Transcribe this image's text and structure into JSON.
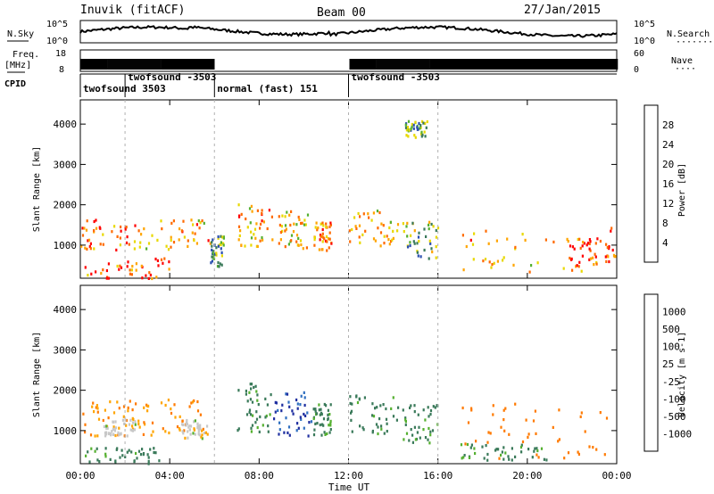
{
  "header": {
    "title_left": "Inuvik (fitACF)",
    "title_center": "Beam 00",
    "title_right": "27/Jan/2015"
  },
  "noise_panel": {
    "left_label": "N.Sky",
    "right_label": "N.Search",
    "left_ticks": [
      "10^5",
      "10^0"
    ],
    "right_ticks": [
      "10^5",
      "10^0"
    ],
    "legend_dots": "·······"
  },
  "freq_panel": {
    "left_label_1": "Freq.",
    "left_label_2": "[MHz]",
    "right_label": "Nave",
    "left_ticks": [
      "18",
      "8"
    ],
    "right_ticks": [
      "60",
      "0"
    ],
    "legend_dots": "····",
    "gaps_hours": [
      [
        6.0,
        12.0
      ]
    ]
  },
  "cpid_panel": {
    "label": "CPID",
    "segments": [
      {
        "label": "twofsound 3503",
        "start": 0.0
      },
      {
        "label": "twofsound -3503",
        "start": 2.0
      },
      {
        "label": "normal (fast) 151",
        "start": 6.0
      },
      {
        "label": "twofsound -3503",
        "start": 12.0
      }
    ]
  },
  "time_axis": {
    "label": "Time UT",
    "ticks": [
      "00:00",
      "04:00",
      "08:00",
      "12:00",
      "16:00",
      "20:00",
      "00:00"
    ],
    "range_hours": [
      0,
      24
    ]
  },
  "colors": {
    "power_scale": [
      "#0000ff",
      "#2b4fb0",
      "#3a7a5a",
      "#55b030",
      "#e8d800",
      "#ffa500",
      "#ff6a00",
      "#ff0000"
    ],
    "velocity_scale": [
      "#1f2fa0",
      "#2f6fc0",
      "#3a7a5a",
      "#55b030",
      "#c8c8c8",
      "#ffa500",
      "#ff7a00",
      "#ff4000",
      "#ff0000"
    ]
  },
  "chart_data": [
    {
      "type": "heatmap",
      "name": "power",
      "xlabel": "",
      "ylabel": "Slant Range [km]",
      "xlim": [
        0,
        24
      ],
      "ylim": [
        180,
        4600
      ],
      "yticks": [
        "1000",
        "2000",
        "3000",
        "4000"
      ],
      "colorbar": {
        "label": "Power [dB]",
        "ticks": [
          "4",
          "8",
          "12",
          "16",
          "20",
          "24",
          "28"
        ],
        "range": [
          0,
          32
        ]
      },
      "scatter_regions": [
        {
          "x": [
            0.0,
            2.5
          ],
          "y": [
            900,
            1700
          ],
          "v": 24
        },
        {
          "x": [
            2.5,
            5.8
          ],
          "y": [
            900,
            1750
          ],
          "v": 22
        },
        {
          "x": [
            0.0,
            4.0
          ],
          "y": [
            200,
            700
          ],
          "v": 26
        },
        {
          "x": [
            5.8,
            6.4
          ],
          "y": [
            500,
            1300
          ],
          "v": 12
        },
        {
          "x": [
            7.0,
            8.6
          ],
          "y": [
            1000,
            2100
          ],
          "v": 22
        },
        {
          "x": [
            8.8,
            10.2
          ],
          "y": [
            950,
            1900
          ],
          "v": 20
        },
        {
          "x": [
            10.4,
            11.2
          ],
          "y": [
            900,
            1600
          ],
          "v": 24
        },
        {
          "x": [
            12.0,
            14.2
          ],
          "y": [
            1000,
            1900
          ],
          "v": 20
        },
        {
          "x": [
            14.4,
            16.0
          ],
          "y": [
            700,
            1600
          ],
          "v": 14
        },
        {
          "x": [
            17.0,
            24.0
          ],
          "y": [
            350,
            1500
          ],
          "v": 22
        },
        {
          "x": [
            21.5,
            24.0
          ],
          "y": [
            500,
            1200
          ],
          "v": 28
        },
        {
          "x": [
            14.5,
            15.5
          ],
          "y": [
            3700,
            4100
          ],
          "v": 12
        }
      ]
    },
    {
      "type": "heatmap",
      "name": "velocity",
      "xlabel": "Time UT",
      "ylabel": "Slant Range [km]",
      "xlim": [
        0,
        24
      ],
      "ylim": [
        180,
        4600
      ],
      "yticks": [
        "1000",
        "2000",
        "3000",
        "4000"
      ],
      "colorbar": {
        "label": "Velocity [m s-1]",
        "ticks": [
          "1000",
          "500",
          "100",
          "25",
          "-25",
          "-100",
          "-500",
          "-1000"
        ]
      },
      "scatter_regions": [
        {
          "x": [
            0.0,
            2.5
          ],
          "y": [
            900,
            1800
          ],
          "v": -100
        },
        {
          "x": [
            1.0,
            2.5
          ],
          "y": [
            900,
            1300
          ],
          "v": 0
        },
        {
          "x": [
            2.5,
            5.5
          ],
          "y": [
            900,
            1800
          ],
          "v": -100
        },
        {
          "x": [
            4.5,
            5.8
          ],
          "y": [
            800,
            1300
          ],
          "v": 0
        },
        {
          "x": [
            0.0,
            3.5
          ],
          "y": [
            200,
            600
          ],
          "v": 100
        },
        {
          "x": [
            7.0,
            8.5
          ],
          "y": [
            1000,
            2200
          ],
          "v": 100
        },
        {
          "x": [
            8.6,
            10.3
          ],
          "y": [
            900,
            2000
          ],
          "v": 800
        },
        {
          "x": [
            10.4,
            11.2
          ],
          "y": [
            900,
            1700
          ],
          "v": 100
        },
        {
          "x": [
            12.0,
            14.2
          ],
          "y": [
            900,
            1900
          ],
          "v": 100
        },
        {
          "x": [
            14.4,
            16.0
          ],
          "y": [
            700,
            1700
          ],
          "v": 100
        },
        {
          "x": [
            17.0,
            24.0
          ],
          "y": [
            300,
            1700
          ],
          "v": -300
        },
        {
          "x": [
            17.0,
            21.0
          ],
          "y": [
            300,
            700
          ],
          "v": 100
        }
      ]
    }
  ]
}
